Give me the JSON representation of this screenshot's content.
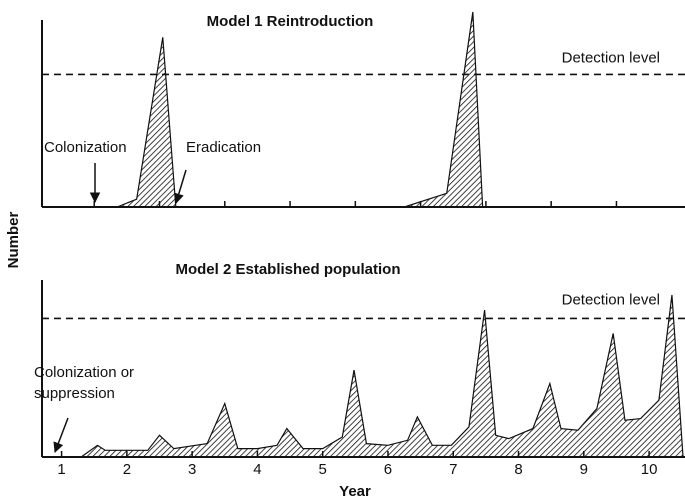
{
  "axis_labels": {
    "x": "Year",
    "y": "Number"
  },
  "chart_data": [
    {
      "type": "area",
      "title": "Model 1 Reintroduction",
      "x": [
        1.85,
        2.15,
        2.55,
        2.75,
        6.25,
        6.9,
        7.3,
        7.45
      ],
      "values": [
        0,
        4,
        87,
        0,
        0,
        7,
        100,
        0
      ],
      "xlim": [
        0.7,
        10.55
      ],
      "ylim": [
        0,
        100
      ],
      "xticks": [
        1.5,
        2.5,
        3.5,
        4.5,
        5.5,
        6.5,
        7.5,
        8.5,
        9.5
      ],
      "tick_labels": false,
      "detection_level": {
        "value": 68,
        "label": "Detection level"
      },
      "annotations": [
        {
          "text": "Colonization",
          "x": 1.5
        },
        {
          "text": "Eradication",
          "x": 2.7
        }
      ],
      "color": "#111111",
      "hatch": true
    },
    {
      "type": "area",
      "title": "Model 2 Established population",
      "x": [
        1.3,
        1.55,
        1.67,
        2.32,
        2.5,
        2.72,
        3.23,
        3.5,
        3.7,
        4.0,
        4.3,
        4.45,
        4.7,
        5.0,
        5.3,
        5.48,
        5.67,
        6.0,
        6.3,
        6.45,
        6.68,
        6.97,
        7.24,
        7.48,
        7.65,
        7.85,
        8.22,
        8.48,
        8.65,
        8.91,
        9.2,
        9.45,
        9.63,
        9.87,
        10.15,
        10.35,
        10.52
      ],
      "values": [
        0,
        7,
        4,
        4,
        13,
        5,
        8,
        32,
        5,
        5,
        7,
        17,
        5,
        5,
        12,
        52,
        8,
        7,
        10,
        24,
        7,
        7,
        18,
        88,
        13,
        11,
        17,
        44,
        17,
        16,
        29,
        74,
        22,
        23,
        34,
        97,
        0
      ],
      "xlim": [
        0.7,
        10.55
      ],
      "ylim": [
        0,
        100
      ],
      "xticks": [
        1,
        2,
        3,
        4,
        5,
        6,
        7,
        8,
        9,
        10
      ],
      "tick_labels": true,
      "detection_level": {
        "value": 83,
        "label": "Detection  level"
      },
      "annotations": [
        {
          "lines": [
            "Colonization or",
            "suppression"
          ],
          "x": 1.0
        }
      ],
      "color": "#111111",
      "hatch": true
    }
  ]
}
